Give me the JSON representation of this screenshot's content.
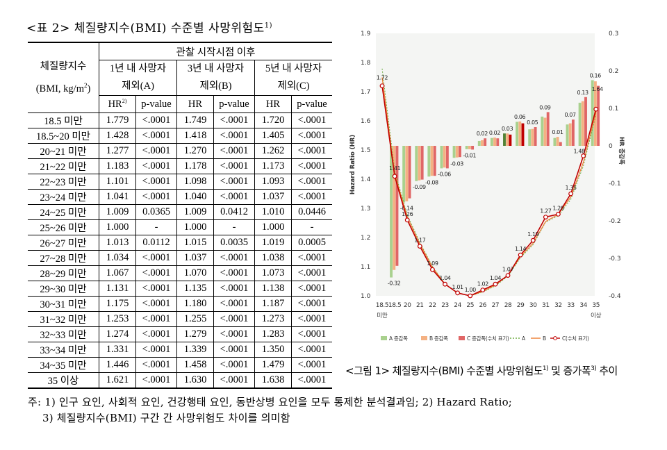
{
  "title": {
    "text": "<표 2> 체질량지수(BMI) 수준별 사망위험도",
    "sup": "1)"
  },
  "table": {
    "bmi_label_1": "체질량지수",
    "bmi_label_2a": "(BMI, kg/m",
    "bmi_label_2b": "2",
    "bmi_label_2c": ")",
    "group_header": "관찰 시작시점 이후",
    "cols": [
      {
        "l1": "1년 내 사망자",
        "l2": "제외(A)"
      },
      {
        "l1": "3년 내 사망자",
        "l2": "제외(B)"
      },
      {
        "l1": "5년 내 사망자",
        "l2": "제외(C)"
      }
    ],
    "hr": "HR",
    "hr_sup": "2)",
    "pvalue": "p-value",
    "rows": [
      [
        "18.5 미만",
        "1.779",
        "<.0001",
        "1.749",
        "<.0001",
        "1.720",
        "<.0001"
      ],
      [
        "18.5~20 미만",
        "1.428",
        "<.0001",
        "1.418",
        "<.0001",
        "1.405",
        "<.0001"
      ],
      [
        "20~21 미만",
        "1.277",
        "<.0001",
        "1.270",
        "<.0001",
        "1.262",
        "<.0001"
      ],
      [
        "21~22 미만",
        "1.183",
        "<.0001",
        "1.178",
        "<.0001",
        "1.173",
        "<.0001"
      ],
      [
        "22~23 미만",
        "1.101",
        "<.0001",
        "1.098",
        "<.0001",
        "1.093",
        "<.0001"
      ],
      [
        "23~24 미만",
        "1.041",
        "<.0001",
        "1.040",
        "<.0001",
        "1.037",
        "<.0001"
      ],
      [
        "24~25 미만",
        "1.009",
        "0.0365",
        "1.009",
        "0.0412",
        "1.010",
        "0.0446"
      ],
      [
        "25~26 미만",
        "1.000",
        "-",
        "1.000",
        "-",
        "1.000",
        "-"
      ],
      [
        "26~27 미만",
        "1.013",
        "0.0112",
        "1.015",
        "0.0035",
        "1.019",
        "0.0005"
      ],
      [
        "27~28 미만",
        "1.034",
        "<.0001",
        "1.037",
        "<.0001",
        "1.038",
        "<.0001"
      ],
      [
        "28~29 미만",
        "1.067",
        "<.0001",
        "1.070",
        "<.0001",
        "1.073",
        "<.0001"
      ],
      [
        "29~30 미만",
        "1.131",
        "<.0001",
        "1.135",
        "<.0001",
        "1.138",
        "<.0001"
      ],
      [
        "30~31 미만",
        "1.175",
        "<.0001",
        "1.180",
        "<.0001",
        "1.187",
        "<.0001"
      ],
      [
        "31~32 미만",
        "1.253",
        "<.0001",
        "1.255",
        "<.0001",
        "1.273",
        "<.0001"
      ],
      [
        "32~33 미만",
        "1.274",
        "<.0001",
        "1.279",
        "<.0001",
        "1.283",
        "<.0001"
      ],
      [
        "33~34 미만",
        "1.331",
        "<.0001",
        "1.339",
        "<.0001",
        "1.350",
        "<.0001"
      ],
      [
        "34~35 미만",
        "1.446",
        "<.0001",
        "1.458",
        "<.0001",
        "1.479",
        "<.0001"
      ],
      [
        "35 이상",
        "1.621",
        "<.0001",
        "1.630",
        "<.0001",
        "1.638",
        "<.0001"
      ]
    ]
  },
  "chart_data": {
    "type": "bar+line",
    "x_ticks": [
      "18.5",
      "18.5",
      "20",
      "21",
      "22",
      "23",
      "24",
      "25",
      "26",
      "27",
      "28",
      "29",
      "30",
      "31",
      "32",
      "33",
      "34",
      "35"
    ],
    "x_sub": {
      "first": "미만",
      "last": "이상"
    },
    "ylabel": "Hazard Ratio (HR)",
    "y2label": "HR 증감폭",
    "ylim": [
      1.0,
      1.9
    ],
    "y_ticks": [
      "1.0",
      "1.1",
      "1.2",
      "1.3",
      "1.4",
      "1.5",
      "1.6",
      "1.7",
      "1.8",
      "1.9"
    ],
    "y2lim": [
      -0.4,
      0.3
    ],
    "y2_ticks": [
      "-0.4",
      "-0.3",
      "-0.2",
      "-0.1",
      "0",
      "0.1",
      "0.2",
      "0.3"
    ],
    "series_lines": [
      {
        "name": "A",
        "values": [
          1.779,
          1.428,
          1.277,
          1.183,
          1.101,
          1.041,
          1.009,
          1.0,
          1.013,
          1.034,
          1.067,
          1.131,
          1.175,
          1.253,
          1.274,
          1.331,
          1.446,
          1.621
        ]
      },
      {
        "name": "B",
        "values": [
          1.749,
          1.418,
          1.27,
          1.178,
          1.098,
          1.04,
          1.009,
          1.0,
          1.015,
          1.037,
          1.07,
          1.135,
          1.18,
          1.255,
          1.279,
          1.339,
          1.458,
          1.63
        ]
      },
      {
        "name": "C(수치 표기)",
        "values": [
          1.72,
          1.41,
          1.26,
          1.17,
          1.09,
          1.04,
          1.01,
          1.0,
          1.02,
          1.04,
          1.07,
          1.14,
          1.19,
          1.27,
          1.28,
          1.35,
          1.48,
          1.64
        ]
      }
    ],
    "c_labels": [
      "1.72",
      "1.41",
      "1.26",
      "1.17",
      "1.09",
      "1.04",
      "1.01",
      "1.00",
      "1.02",
      "1.04",
      "1.07",
      "1.14",
      "1.19",
      "1.27",
      "1.28",
      "1.35",
      "1.48",
      "1.64"
    ],
    "series_bars": [
      {
        "name": "A 증감폭",
        "values": [
          null,
          -0.351,
          -0.151,
          -0.094,
          -0.082,
          -0.06,
          -0.032,
          -0.009,
          0.013,
          0.021,
          0.033,
          0.064,
          0.044,
          0.078,
          0.021,
          0.057,
          0.115,
          0.175
        ]
      },
      {
        "name": "B 증감폭",
        "values": [
          null,
          -0.331,
          -0.148,
          -0.092,
          -0.08,
          -0.058,
          -0.031,
          -0.009,
          0.015,
          0.022,
          0.033,
          0.065,
          0.045,
          0.075,
          0.024,
          0.06,
          0.119,
          0.172
        ]
      },
      {
        "name": "C 증감폭(수치 표기)",
        "values": [
          null,
          -0.32,
          -0.14,
          -0.09,
          -0.08,
          -0.06,
          -0.03,
          -0.01,
          0.02,
          0.02,
          0.03,
          0.06,
          0.05,
          0.09,
          0.01,
          0.07,
          0.13,
          0.16
        ]
      }
    ],
    "bar_labels": [
      null,
      "-0.32",
      "-0.14",
      "-0.09",
      "-0.08",
      "-0.06",
      "-0.03",
      "-0.01",
      "0.02",
      "0.02",
      "0.03",
      "0.06",
      "0.05",
      "0.09",
      "0.01",
      "0.07",
      "0.13",
      "0.16"
    ],
    "legend": [
      "A 증감폭",
      "B 증감폭",
      "C 증감폭(수치 표기)",
      "A",
      "B",
      "C(수치 표기)"
    ],
    "colors": {
      "A": "#a9d18e",
      "B": "#f4b183",
      "C": "#e06666",
      "line_C": "#c00000",
      "line_A": "#70ad47",
      "line_B": "#ed7d31",
      "highlight_C": "#c00000",
      "highlight_A": "#548235"
    }
  },
  "caption": {
    "a": "<그림 1> 체질량지수(BMI) 수준별 사망위험도",
    "s1": "1)",
    "b": " 및 증가폭",
    "s2": "3)",
    "c": " 추이"
  },
  "note": {
    "line1": "주: 1) 인구 요인, 사회적 요인, 건강행태 요인, 동반상병 요인을 모두 통제한 분석결과임; 2) Hazard Ratio;",
    "line2": "3) 체질량지수(BMI) 구간 간 사망위험도 차이를 의미함"
  }
}
